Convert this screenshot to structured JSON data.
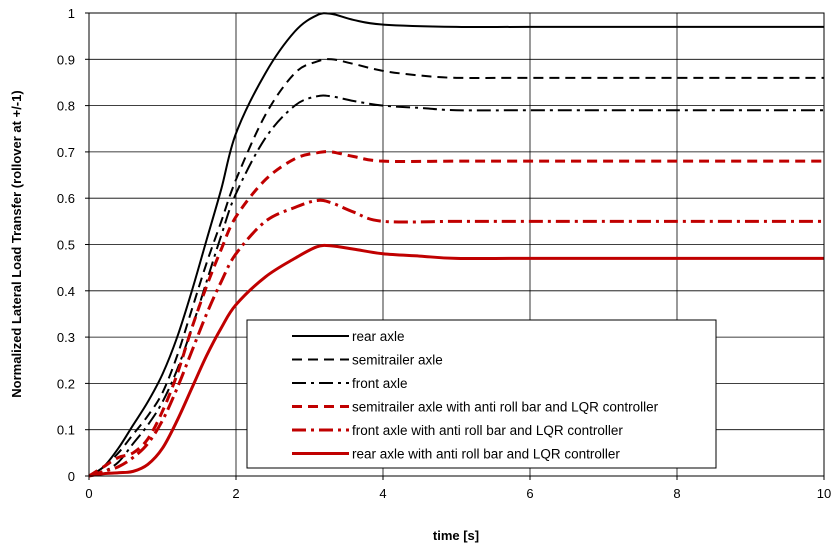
{
  "chart_data": {
    "type": "line",
    "title": "",
    "xlabel": "time [s]",
    "ylabel": "Normalized Lateral Load Transfer (rollover at +/-1)",
    "xlim": [
      0,
      10
    ],
    "ylim": [
      0,
      1
    ],
    "x_ticks": [
      "0",
      "2",
      "4",
      "6",
      "8",
      "10"
    ],
    "y_ticks": [
      "0",
      "0.1",
      "0.2",
      "0.3",
      "0.4",
      "0.5",
      "0.6",
      "0.7",
      "0.8",
      "0.9",
      "1"
    ],
    "grid": true,
    "legend_position": "lower-right",
    "series": [
      {
        "name": "rear axle",
        "color": "#000000",
        "dash": "solid",
        "points": [
          [
            0,
            0
          ],
          [
            0.2,
            0.02
          ],
          [
            0.4,
            0.06
          ],
          [
            0.6,
            0.11
          ],
          [
            0.8,
            0.16
          ],
          [
            1.0,
            0.22
          ],
          [
            1.2,
            0.3
          ],
          [
            1.4,
            0.4
          ],
          [
            1.6,
            0.51
          ],
          [
            1.8,
            0.62
          ],
          [
            2.0,
            0.74
          ],
          [
            2.4,
            0.87
          ],
          [
            2.8,
            0.96
          ],
          [
            3.1,
            0.995
          ],
          [
            3.3,
            0.998
          ],
          [
            3.6,
            0.985
          ],
          [
            4.0,
            0.975
          ],
          [
            5.0,
            0.97
          ],
          [
            6.0,
            0.97
          ],
          [
            8.0,
            0.97
          ],
          [
            10.0,
            0.97
          ]
        ]
      },
      {
        "name": "semitrailer axle",
        "color": "#000000",
        "dash": "dashed",
        "points": [
          [
            0,
            0
          ],
          [
            0.2,
            0.02
          ],
          [
            0.4,
            0.05
          ],
          [
            0.6,
            0.09
          ],
          [
            0.8,
            0.13
          ],
          [
            1.0,
            0.18
          ],
          [
            1.2,
            0.26
          ],
          [
            1.4,
            0.36
          ],
          [
            1.6,
            0.46
          ],
          [
            1.8,
            0.55
          ],
          [
            2.0,
            0.64
          ],
          [
            2.4,
            0.78
          ],
          [
            2.8,
            0.87
          ],
          [
            3.1,
            0.895
          ],
          [
            3.3,
            0.9
          ],
          [
            3.6,
            0.89
          ],
          [
            4.0,
            0.875
          ],
          [
            4.5,
            0.865
          ],
          [
            5.0,
            0.86
          ],
          [
            6.0,
            0.86
          ],
          [
            8.0,
            0.86
          ],
          [
            10.0,
            0.86
          ]
        ]
      },
      {
        "name": "front axle",
        "color": "#000000",
        "dash": "dashdot",
        "points": [
          [
            0,
            0
          ],
          [
            0.2,
            0.01
          ],
          [
            0.4,
            0.03
          ],
          [
            0.6,
            0.07
          ],
          [
            0.8,
            0.11
          ],
          [
            1.0,
            0.16
          ],
          [
            1.2,
            0.23
          ],
          [
            1.4,
            0.32
          ],
          [
            1.6,
            0.42
          ],
          [
            1.8,
            0.52
          ],
          [
            2.0,
            0.61
          ],
          [
            2.4,
            0.73
          ],
          [
            2.8,
            0.8
          ],
          [
            3.1,
            0.82
          ],
          [
            3.3,
            0.82
          ],
          [
            3.6,
            0.81
          ],
          [
            4.0,
            0.8
          ],
          [
            4.5,
            0.795
          ],
          [
            5.0,
            0.79
          ],
          [
            6.0,
            0.79
          ],
          [
            8.0,
            0.79
          ],
          [
            10.0,
            0.79
          ]
        ]
      },
      {
        "name": "semitrailer axle with anti roll bar and LQR controller",
        "color": "#c00000",
        "dash": "dashed",
        "points": [
          [
            0,
            0
          ],
          [
            0.2,
            0.02
          ],
          [
            0.4,
            0.04
          ],
          [
            0.6,
            0.05
          ],
          [
            0.8,
            0.08
          ],
          [
            1.0,
            0.14
          ],
          [
            1.2,
            0.22
          ],
          [
            1.4,
            0.32
          ],
          [
            1.6,
            0.41
          ],
          [
            1.8,
            0.49
          ],
          [
            2.0,
            0.56
          ],
          [
            2.4,
            0.64
          ],
          [
            2.8,
            0.685
          ],
          [
            3.1,
            0.698
          ],
          [
            3.3,
            0.7
          ],
          [
            3.6,
            0.69
          ],
          [
            4.0,
            0.68
          ],
          [
            5.0,
            0.68
          ],
          [
            6.0,
            0.68
          ],
          [
            8.0,
            0.68
          ],
          [
            10.0,
            0.68
          ]
        ]
      },
      {
        "name": "front axle with anti roll bar and LQR controller",
        "color": "#c00000",
        "dash": "dashdot",
        "points": [
          [
            0,
            0
          ],
          [
            0.2,
            0.01
          ],
          [
            0.4,
            0.02
          ],
          [
            0.6,
            0.04
          ],
          [
            0.8,
            0.07
          ],
          [
            1.0,
            0.12
          ],
          [
            1.2,
            0.19
          ],
          [
            1.4,
            0.27
          ],
          [
            1.6,
            0.35
          ],
          [
            1.8,
            0.42
          ],
          [
            2.0,
            0.48
          ],
          [
            2.4,
            0.55
          ],
          [
            2.8,
            0.58
          ],
          [
            3.1,
            0.595
          ],
          [
            3.3,
            0.59
          ],
          [
            3.6,
            0.57
          ],
          [
            4.0,
            0.55
          ],
          [
            5.0,
            0.55
          ],
          [
            6.0,
            0.55
          ],
          [
            8.0,
            0.55
          ],
          [
            10.0,
            0.55
          ]
        ]
      },
      {
        "name": "rear axle with anti roll bar and LQR controller",
        "color": "#c00000",
        "dash": "solid",
        "points": [
          [
            0,
            0
          ],
          [
            0.2,
            0.005
          ],
          [
            0.4,
            0.007
          ],
          [
            0.6,
            0.01
          ],
          [
            0.8,
            0.025
          ],
          [
            1.0,
            0.06
          ],
          [
            1.2,
            0.12
          ],
          [
            1.4,
            0.19
          ],
          [
            1.6,
            0.26
          ],
          [
            1.8,
            0.32
          ],
          [
            2.0,
            0.37
          ],
          [
            2.4,
            0.43
          ],
          [
            2.8,
            0.47
          ],
          [
            3.1,
            0.495
          ],
          [
            3.3,
            0.497
          ],
          [
            3.6,
            0.49
          ],
          [
            4.0,
            0.48
          ],
          [
            4.5,
            0.475
          ],
          [
            5.0,
            0.47
          ],
          [
            6.0,
            0.47
          ],
          [
            8.0,
            0.47
          ],
          [
            10.0,
            0.47
          ]
        ]
      }
    ]
  }
}
